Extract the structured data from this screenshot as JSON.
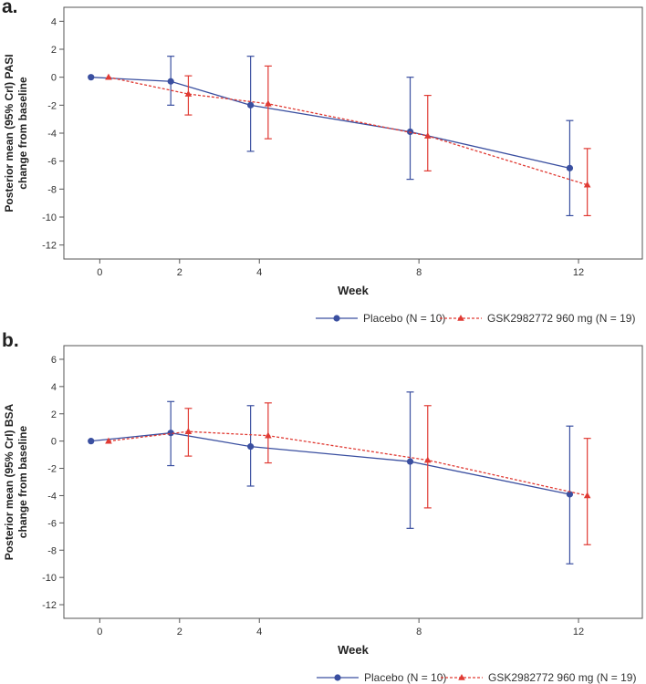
{
  "chart_data": [
    {
      "type": "line",
      "panel_label": "a.",
      "xlabel": "Week",
      "ylabel_lines": [
        "Posterior mean (95% CrI) PASI",
        "change from baseline"
      ],
      "xticks": [
        0,
        2,
        4,
        8,
        12
      ],
      "yticks": [
        4,
        2,
        0,
        -2,
        -4,
        -6,
        -8,
        -10,
        -12
      ],
      "ylim": [
        -13,
        5
      ],
      "xlim": [
        -0.9,
        13.6
      ],
      "series": [
        {
          "name": "Placebo (N = 10)",
          "color": "#3a4fa0",
          "marker": "circle",
          "linestyle": "solid",
          "x": [
            0,
            2,
            4,
            8,
            12
          ],
          "y": [
            0,
            -0.3,
            -2.0,
            -3.9,
            -6.5
          ],
          "ci_low": [
            0,
            -2.0,
            -5.3,
            -7.3,
            -9.9
          ],
          "ci_high": [
            0,
            1.5,
            1.5,
            0.0,
            -3.1
          ]
        },
        {
          "name": "GSK2982772 960 mg (N = 19)",
          "color": "#e03a33",
          "marker": "triangle",
          "linestyle": "dotted",
          "x": [
            0,
            2,
            4,
            8,
            12
          ],
          "y": [
            0,
            -1.2,
            -1.9,
            -4.2,
            -7.7
          ],
          "ci_low": [
            0,
            -2.7,
            -4.4,
            -6.7,
            -9.9
          ],
          "ci_high": [
            0,
            0.1,
            0.8,
            -1.3,
            -5.1
          ]
        }
      ]
    },
    {
      "type": "line",
      "panel_label": "b.",
      "xlabel": "Week",
      "ylabel_lines": [
        "Posterior mean (95% CrI) BSA",
        "change from baseline"
      ],
      "xticks": [
        0,
        2,
        4,
        8,
        12
      ],
      "yticks": [
        6,
        4,
        2,
        0,
        -2,
        -4,
        -6,
        -8,
        -10,
        -12
      ],
      "ylim": [
        -13,
        7
      ],
      "xlim": [
        -0.9,
        13.6
      ],
      "series": [
        {
          "name": "Placebo (N = 10)",
          "color": "#3a4fa0",
          "marker": "circle",
          "linestyle": "solid",
          "x": [
            0,
            2,
            4,
            8,
            12
          ],
          "y": [
            0,
            0.6,
            -0.4,
            -1.5,
            -3.9
          ],
          "ci_low": [
            0,
            -1.8,
            -3.3,
            -6.4,
            -9.0
          ],
          "ci_high": [
            0,
            2.9,
            2.6,
            3.6,
            1.1
          ]
        },
        {
          "name": "GSK2982772 960 mg (N = 19)",
          "color": "#e03a33",
          "marker": "triangle",
          "linestyle": "dotted",
          "x": [
            0,
            2,
            4,
            8,
            12
          ],
          "y": [
            0,
            0.7,
            0.4,
            -1.4,
            -4.0
          ],
          "ci_low": [
            0,
            -1.1,
            -1.6,
            -4.9,
            -7.6
          ],
          "ci_high": [
            0,
            2.4,
            2.8,
            2.6,
            0.2
          ]
        }
      ]
    }
  ]
}
